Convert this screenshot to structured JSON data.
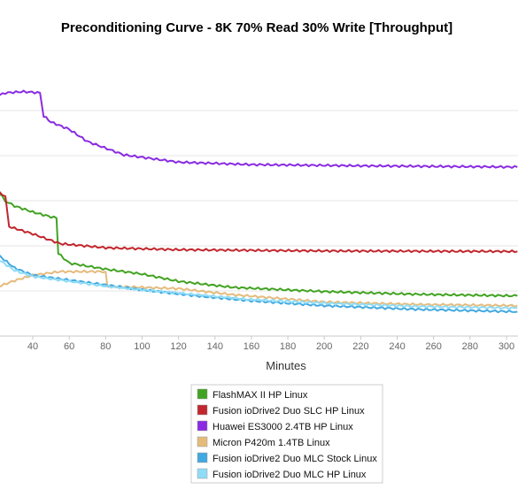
{
  "chart_data": {
    "type": "line",
    "title": "Preconditioning Curve - 8K 70% Read 30% Write [Throughput]",
    "xlabel": "Minutes",
    "ylabel": "",
    "x_ticks": [
      40,
      60,
      80,
      100,
      120,
      140,
      160,
      180,
      200,
      220,
      240,
      260,
      280,
      300
    ],
    "xlim": [
      20,
      306
    ],
    "grid": true,
    "legend_placement": "bottom-center",
    "series": [
      {
        "name": "FlashMAX II HP Linux",
        "color": "#41a321",
        "points": [
          [
            20,
            0.605
          ],
          [
            25,
            0.555
          ],
          [
            30,
            0.535
          ],
          [
            40,
            0.51
          ],
          [
            50,
            0.49
          ],
          [
            53,
            0.485
          ],
          [
            54,
            0.34
          ],
          [
            60,
            0.3
          ],
          [
            80,
            0.275
          ],
          [
            100,
            0.255
          ],
          [
            120,
            0.225
          ],
          [
            150,
            0.2
          ],
          [
            200,
            0.183
          ],
          [
            250,
            0.172
          ],
          [
            306,
            0.165
          ]
        ]
      },
      {
        "name": "Fusion ioDrive2 Duo SLC HP Linux",
        "color": "#c1272d",
        "points": [
          [
            20,
            0.6
          ],
          [
            25,
            0.575
          ],
          [
            27,
            0.45
          ],
          [
            40,
            0.42
          ],
          [
            55,
            0.38
          ],
          [
            80,
            0.363
          ],
          [
            120,
            0.355
          ],
          [
            200,
            0.35
          ],
          [
            306,
            0.348
          ]
        ]
      },
      {
        "name": "Huawei ES3000 2.4TB HP Linux",
        "color": "#8a2be2",
        "points": [
          [
            20,
            0.985
          ],
          [
            25,
            1.0
          ],
          [
            35,
            1.005
          ],
          [
            44,
            1.0
          ],
          [
            46,
            0.905
          ],
          [
            50,
            0.88
          ],
          [
            60,
            0.85
          ],
          [
            70,
            0.8
          ],
          [
            90,
            0.745
          ],
          [
            120,
            0.715
          ],
          [
            160,
            0.705
          ],
          [
            220,
            0.7
          ],
          [
            306,
            0.695
          ]
        ]
      },
      {
        "name": "Micron P420m 1.4TB Linux",
        "color": "#e5bb7c",
        "points": [
          [
            20,
            0.2
          ],
          [
            30,
            0.228
          ],
          [
            40,
            0.25
          ],
          [
            55,
            0.265
          ],
          [
            80,
            0.265
          ],
          [
            81,
            0.205
          ],
          [
            100,
            0.2
          ],
          [
            120,
            0.195
          ],
          [
            150,
            0.17
          ],
          [
            200,
            0.14
          ],
          [
            250,
            0.13
          ],
          [
            306,
            0.125
          ]
        ]
      },
      {
        "name": "Fusion ioDrive2 Duo MLC Stock Linux",
        "color": "#42a9e0",
        "points": [
          [
            20,
            0.34
          ],
          [
            30,
            0.28
          ],
          [
            40,
            0.25
          ],
          [
            60,
            0.23
          ],
          [
            80,
            0.21
          ],
          [
            100,
            0.19
          ],
          [
            130,
            0.165
          ],
          [
            160,
            0.145
          ],
          [
            200,
            0.125
          ],
          [
            250,
            0.11
          ],
          [
            306,
            0.1
          ]
        ]
      },
      {
        "name": "Fusion ioDrive2 Duo MLC HP Linux",
        "color": "#8fdcf7",
        "points": [
          [
            20,
            0.32
          ],
          [
            30,
            0.27
          ],
          [
            40,
            0.245
          ],
          [
            60,
            0.225
          ],
          [
            80,
            0.205
          ],
          [
            100,
            0.19
          ],
          [
            130,
            0.17
          ],
          [
            160,
            0.15
          ],
          [
            200,
            0.135
          ],
          [
            250,
            0.122
          ],
          [
            306,
            0.115
          ]
        ]
      }
    ]
  }
}
